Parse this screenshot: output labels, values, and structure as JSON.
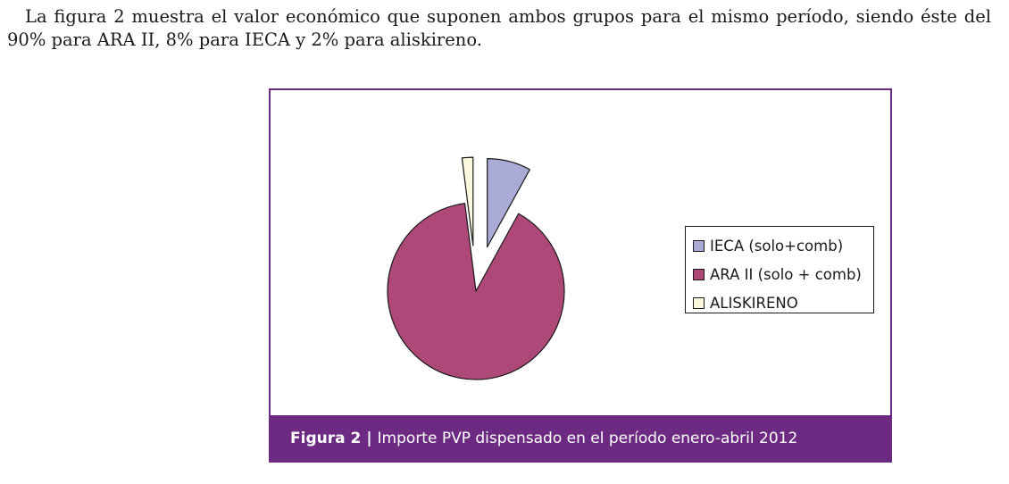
{
  "paragraph": "La figura 2 muestra el valor económico que suponen ambos grupos para el mismo período, siendo éste del 90% para ARA II, 8% para IECA y 2% para aliskireno.",
  "caption": {
    "label": "Figura 2",
    "separator": "|",
    "text": "Importe PVP dispensado en el período enero-abril 2012"
  },
  "colors": {
    "frame": "#6d2a82",
    "caption_bg": "#6d2a82"
  },
  "chart_data": {
    "type": "pie",
    "title": "",
    "legend_position": "right",
    "slices": [
      {
        "label": "IECA (solo+comb)",
        "value": 8,
        "color": "#aaaad6",
        "exploded": true
      },
      {
        "label": "ARA II (solo + comb)",
        "value": 90,
        "color": "#ad4878",
        "exploded": false
      },
      {
        "label": "ALISKIRENO",
        "value": 2,
        "color": "#fbf8dd",
        "exploded": true
      }
    ]
  }
}
